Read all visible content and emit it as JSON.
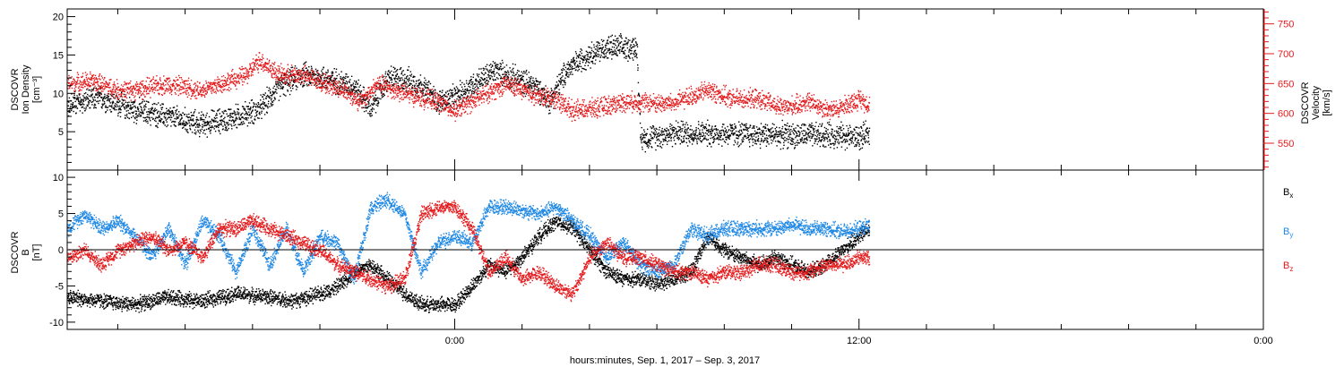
{
  "chart_data": [
    {
      "type": "scatter",
      "panel": "plasma",
      "ylabel_left": [
        "DSCOVR",
        "Ion Density",
        "[cm⁻³]"
      ],
      "ylabel_right": [
        "DSCOVR",
        "Velocity",
        "[km/s]"
      ],
      "ylim_left": [
        0,
        21
      ],
      "ylim_right": [
        505,
        775
      ],
      "yticks_left": [
        5,
        10,
        15,
        20
      ],
      "yticks_right": [
        550,
        600,
        650,
        700,
        750
      ],
      "legend": "none",
      "grid": false,
      "series": [
        {
          "axis": "left",
          "color": "#000000",
          "keyframes": [
            [
              -12.6,
              9
            ],
            [
              -11.5,
              8.5
            ],
            [
              -10.5,
              9.5
            ],
            [
              -9.6,
              8
            ],
            [
              -8.5,
              7
            ],
            [
              -7.5,
              6
            ],
            [
              -6.5,
              7
            ],
            [
              -5.8,
              8
            ],
            [
              -5.2,
              11
            ],
            [
              -4.5,
              12.5
            ],
            [
              -3.8,
              12
            ],
            [
              -3.0,
              11
            ],
            [
              -2.5,
              8
            ],
            [
              -2.0,
              12
            ],
            [
              -1.5,
              12
            ],
            [
              -1.0,
              11
            ],
            [
              -0.5,
              9
            ],
            [
              0.0,
              9.5
            ],
            [
              0.6,
              11.5
            ],
            [
              1.2,
              13
            ],
            [
              1.8,
              12
            ],
            [
              2.4,
              11
            ],
            [
              2.8,
              9
            ],
            [
              3.3,
              13
            ],
            [
              3.9,
              15
            ],
            [
              4.5,
              16
            ],
            [
              5.4,
              16
            ],
            [
              5.5,
              4.2
            ],
            [
              6.5,
              4.9
            ],
            [
              8.0,
              4.8
            ],
            [
              10.0,
              4.6
            ],
            [
              11.5,
              4.6
            ],
            [
              12.0,
              4.3
            ],
            [
              12.3,
              4.8
            ]
          ]
        },
        {
          "axis": "right",
          "color": "#e41a1c",
          "keyframes": [
            [
              -12.6,
              660
            ],
            [
              -11.5,
              650
            ],
            [
              -10.8,
              655
            ],
            [
              -10.0,
              640
            ],
            [
              -9.5,
              640
            ],
            [
              -8.5,
              650
            ],
            [
              -7.5,
              640
            ],
            [
              -6.2,
              665
            ],
            [
              -5.8,
              690
            ],
            [
              -5.2,
              665
            ],
            [
              -4.5,
              665
            ],
            [
              -3.8,
              650
            ],
            [
              -3.3,
              640
            ],
            [
              -2.8,
              620
            ],
            [
              -2.3,
              650
            ],
            [
              -1.8,
              640
            ],
            [
              -1.2,
              630
            ],
            [
              -0.5,
              620
            ],
            [
              0.0,
              605
            ],
            [
              0.8,
              630
            ],
            [
              1.5,
              650
            ],
            [
              2.0,
              640
            ],
            [
              2.4,
              630
            ],
            [
              3.0,
              625
            ],
            [
              3.5,
              605
            ],
            [
              4.2,
              610
            ],
            [
              5.0,
              620
            ],
            [
              5.5,
              620
            ],
            [
              6.0,
              618
            ],
            [
              6.5,
              618
            ],
            [
              7.0,
              630
            ],
            [
              7.5,
              640
            ],
            [
              8.2,
              625
            ],
            [
              9.0,
              625
            ],
            [
              9.7,
              610
            ],
            [
              10.5,
              620
            ],
            [
              11.2,
              605
            ],
            [
              12.0,
              625
            ],
            [
              12.3,
              615
            ]
          ]
        }
      ]
    },
    {
      "type": "scatter",
      "panel": "magnetic-field",
      "ylabel": [
        "DSCOVR",
        "B",
        "[nT]"
      ],
      "ylim": [
        -11,
        11
      ],
      "yticks": [
        -10,
        -5,
        0,
        5,
        10
      ],
      "zero_line": true,
      "legend": "right",
      "grid": false,
      "series": [
        {
          "name": "Bx",
          "label_main": "B",
          "label_sub": "x",
          "color": "#000000",
          "keyframes": [
            [
              -12.6,
              -6
            ],
            [
              -11.5,
              -6.5
            ],
            [
              -10.5,
              -7
            ],
            [
              -9.5,
              -7.5
            ],
            [
              -8.5,
              -6.5
            ],
            [
              -7.5,
              -7
            ],
            [
              -6.5,
              -6
            ],
            [
              -5.5,
              -6.5
            ],
            [
              -4.8,
              -7
            ],
            [
              -4.0,
              -6
            ],
            [
              -3.5,
              -5
            ],
            [
              -3.0,
              -3
            ],
            [
              -2.5,
              -2
            ],
            [
              -2.0,
              -4
            ],
            [
              -1.5,
              -6
            ],
            [
              -1.0,
              -7.5
            ],
            [
              -0.5,
              -7.5
            ],
            [
              0.0,
              -7.5
            ],
            [
              0.5,
              -5
            ],
            [
              1.0,
              -2
            ],
            [
              1.5,
              -3
            ],
            [
              2.0,
              -1
            ],
            [
              2.5,
              2
            ],
            [
              3.0,
              4
            ],
            [
              3.5,
              3
            ],
            [
              4.0,
              0
            ],
            [
              4.5,
              -3
            ],
            [
              5.0,
              -4
            ],
            [
              5.5,
              -4
            ],
            [
              6.0,
              -4.5
            ],
            [
              6.5,
              -4
            ],
            [
              7.0,
              -3
            ],
            [
              7.5,
              2
            ],
            [
              8.0,
              0
            ],
            [
              8.5,
              -1
            ],
            [
              9.0,
              -2
            ],
            [
              9.5,
              -1
            ],
            [
              10.0,
              -2
            ],
            [
              10.5,
              -3
            ],
            [
              11.0,
              -2
            ],
            [
              11.5,
              0
            ],
            [
              12.0,
              2
            ],
            [
              12.3,
              3
            ]
          ]
        },
        {
          "name": "By",
          "label_main": "B",
          "label_sub": "y",
          "color": "#1f88e5",
          "keyframes": [
            [
              -12.6,
              5
            ],
            [
              -12.0,
              5
            ],
            [
              -11.5,
              3
            ],
            [
              -11.0,
              5
            ],
            [
              -10.5,
              3
            ],
            [
              -10.0,
              4
            ],
            [
              -9.5,
              2
            ],
            [
              -9.0,
              -1
            ],
            [
              -8.5,
              3
            ],
            [
              -8.0,
              -2
            ],
            [
              -7.5,
              4
            ],
            [
              -7.0,
              2
            ],
            [
              -6.5,
              -3
            ],
            [
              -6.0,
              3
            ],
            [
              -5.5,
              -2
            ],
            [
              -5.0,
              3
            ],
            [
              -4.5,
              -3
            ],
            [
              -4.0,
              2
            ],
            [
              -3.5,
              1
            ],
            [
              -3.0,
              -4
            ],
            [
              -2.5,
              6
            ],
            [
              -2.0,
              7
            ],
            [
              -1.5,
              5
            ],
            [
              -1.0,
              -3
            ],
            [
              -0.5,
              1
            ],
            [
              0.0,
              2
            ],
            [
              0.5,
              1
            ],
            [
              1.0,
              6
            ],
            [
              1.5,
              6
            ],
            [
              2.0,
              5.5
            ],
            [
              2.5,
              5
            ],
            [
              3.0,
              6
            ],
            [
              3.5,
              4
            ],
            [
              4.0,
              2
            ],
            [
              4.5,
              -1
            ],
            [
              5.0,
              1
            ],
            [
              5.5,
              -2
            ],
            [
              6.0,
              -3
            ],
            [
              6.5,
              -2
            ],
            [
              7.0,
              3
            ],
            [
              7.5,
              2
            ],
            [
              8.0,
              3
            ],
            [
              8.5,
              3
            ],
            [
              9.0,
              3
            ],
            [
              9.5,
              3
            ],
            [
              10.0,
              3.5
            ],
            [
              10.5,
              3
            ],
            [
              11.0,
              3
            ],
            [
              11.5,
              2.5
            ],
            [
              12.0,
              3
            ],
            [
              12.3,
              3.5
            ]
          ]
        },
        {
          "name": "Bz",
          "label_main": "B",
          "label_sub": "z",
          "color": "#e41a1c",
          "keyframes": [
            [
              -12.6,
              0
            ],
            [
              -12.0,
              1
            ],
            [
              -11.5,
              -1
            ],
            [
              -11.0,
              0
            ],
            [
              -10.5,
              -2
            ],
            [
              -10.0,
              0
            ],
            [
              -9.5,
              1
            ],
            [
              -9.0,
              2
            ],
            [
              -8.5,
              0
            ],
            [
              -8.0,
              1
            ],
            [
              -7.5,
              -1
            ],
            [
              -7.0,
              3
            ],
            [
              -6.5,
              3
            ],
            [
              -6.0,
              4
            ],
            [
              -5.5,
              3
            ],
            [
              -5.0,
              2
            ],
            [
              -4.5,
              1
            ],
            [
              -4.0,
              0
            ],
            [
              -3.5,
              -2
            ],
            [
              -3.0,
              -3
            ],
            [
              -2.5,
              -4
            ],
            [
              -2.0,
              -5
            ],
            [
              -1.5,
              -4
            ],
            [
              -1.0,
              5
            ],
            [
              -0.5,
              6
            ],
            [
              0.0,
              6
            ],
            [
              0.5,
              3
            ],
            [
              1.0,
              -3
            ],
            [
              1.5,
              -1
            ],
            [
              2.0,
              -4
            ],
            [
              2.5,
              -3
            ],
            [
              3.0,
              -5
            ],
            [
              3.5,
              -6
            ],
            [
              4.0,
              -1
            ],
            [
              4.5,
              1
            ],
            [
              5.0,
              -1
            ],
            [
              5.5,
              -1
            ],
            [
              6.0,
              -2
            ],
            [
              6.5,
              -3
            ],
            [
              7.0,
              -3
            ],
            [
              7.5,
              -4
            ],
            [
              8.0,
              -3
            ],
            [
              8.5,
              -3
            ],
            [
              9.0,
              -2
            ],
            [
              9.5,
              -2
            ],
            [
              10.0,
              -3
            ],
            [
              10.5,
              -3
            ],
            [
              11.0,
              -2
            ],
            [
              11.5,
              -2
            ],
            [
              12.0,
              -1
            ],
            [
              12.3,
              -1
            ]
          ]
        }
      ]
    }
  ],
  "x_axis": {
    "xlim": [
      -11.5,
      24.0
    ],
    "major_ticks": [
      {
        "value": 0,
        "label": "0:00"
      },
      {
        "value": 12,
        "label": "12:00"
      },
      {
        "value": 24,
        "label": "0:00"
      }
    ],
    "minor_tick_step": 2,
    "data_end": 12.3,
    "xlabel": "hours:minutes, Sep.  1, 2017 – Sep.  3, 2017"
  }
}
